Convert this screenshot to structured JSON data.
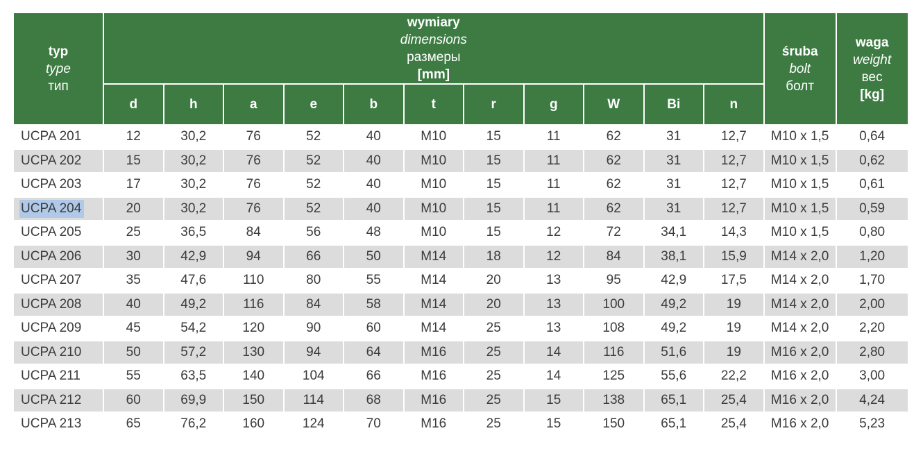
{
  "colors": {
    "header_green": "#3d7b43",
    "header_text": "#ffffff",
    "row_alt_gray": "#dcdcdc",
    "row_white": "#ffffff",
    "cell_text": "#3b3b3b",
    "selection_highlight": "#b0c9e8"
  },
  "table": {
    "header": {
      "type": {
        "l1": "typ",
        "l2": "type",
        "l3": "тип"
      },
      "dimensions": {
        "l1": "wymiary",
        "l2": "dimensions",
        "l3": "размеры",
        "l4": "[mm]"
      },
      "dim_columns": [
        "d",
        "h",
        "a",
        "e",
        "b",
        "t",
        "r",
        "g",
        "W",
        "Bi",
        "n"
      ],
      "bolt": {
        "l1": "śruba",
        "l2": "bolt",
        "l3": "болт"
      },
      "weight": {
        "l1": "waga",
        "l2": "weight",
        "l3": "вес",
        "l4": "[kg]"
      }
    },
    "selected_row_index": 3,
    "rows": [
      [
        "UCPA 201",
        "12",
        "30,2",
        "76",
        "52",
        "40",
        "M10",
        "15",
        "11",
        "62",
        "31",
        "12,7",
        "M10 x 1,5",
        "0,64"
      ],
      [
        "UCPA 202",
        "15",
        "30,2",
        "76",
        "52",
        "40",
        "M10",
        "15",
        "11",
        "62",
        "31",
        "12,7",
        "M10 x 1,5",
        "0,62"
      ],
      [
        "UCPA 203",
        "17",
        "30,2",
        "76",
        "52",
        "40",
        "M10",
        "15",
        "11",
        "62",
        "31",
        "12,7",
        "M10 x 1,5",
        "0,61"
      ],
      [
        "UCPA 204",
        "20",
        "30,2",
        "76",
        "52",
        "40",
        "M10",
        "15",
        "11",
        "62",
        "31",
        "12,7",
        "M10 x 1,5",
        "0,59"
      ],
      [
        "UCPA 205",
        "25",
        "36,5",
        "84",
        "56",
        "48",
        "M10",
        "15",
        "12",
        "72",
        "34,1",
        "14,3",
        "M10 x 1,5",
        "0,80"
      ],
      [
        "UCPA 206",
        "30",
        "42,9",
        "94",
        "66",
        "50",
        "M14",
        "18",
        "12",
        "84",
        "38,1",
        "15,9",
        "M14 x 2,0",
        "1,20"
      ],
      [
        "UCPA 207",
        "35",
        "47,6",
        "110",
        "80",
        "55",
        "M14",
        "20",
        "13",
        "95",
        "42,9",
        "17,5",
        "M14 x 2,0",
        "1,70"
      ],
      [
        "UCPA 208",
        "40",
        "49,2",
        "116",
        "84",
        "58",
        "M14",
        "20",
        "13",
        "100",
        "49,2",
        "19",
        "M14 x 2,0",
        "2,00"
      ],
      [
        "UCPA 209",
        "45",
        "54,2",
        "120",
        "90",
        "60",
        "M14",
        "25",
        "13",
        "108",
        "49,2",
        "19",
        "M14 x 2,0",
        "2,20"
      ],
      [
        "UCPA 210",
        "50",
        "57,2",
        "130",
        "94",
        "64",
        "M16",
        "25",
        "14",
        "116",
        "51,6",
        "19",
        "M16 x 2,0",
        "2,80"
      ],
      [
        "UCPA 211",
        "55",
        "63,5",
        "140",
        "104",
        "66",
        "M16",
        "25",
        "14",
        "125",
        "55,6",
        "22,2",
        "M16 x 2,0",
        "3,00"
      ],
      [
        "UCPA 212",
        "60",
        "69,9",
        "150",
        "114",
        "68",
        "M16",
        "25",
        "15",
        "138",
        "65,1",
        "25,4",
        "M16 x 2,0",
        "4,24"
      ],
      [
        "UCPA 213",
        "65",
        "76,2",
        "160",
        "124",
        "70",
        "M16",
        "25",
        "15",
        "150",
        "65,1",
        "25,4",
        "M16 x 2,0",
        "5,23"
      ]
    ]
  }
}
